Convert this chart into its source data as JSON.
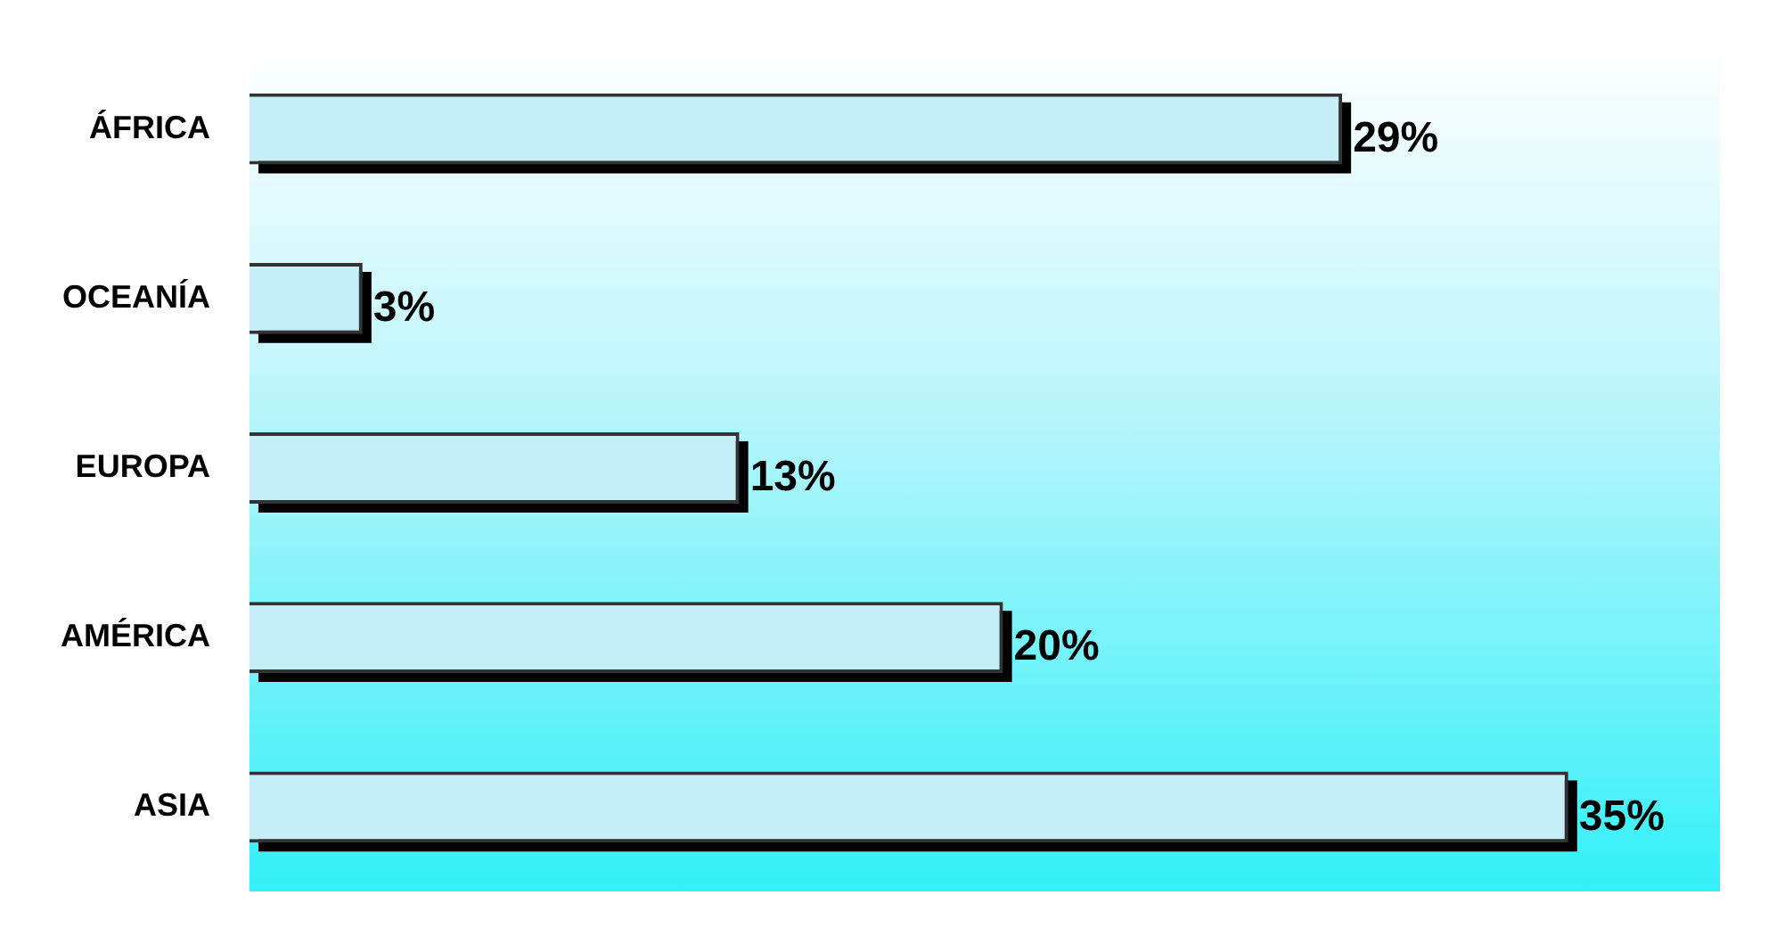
{
  "chart_data": {
    "type": "bar",
    "orientation": "horizontal",
    "categories": [
      "ÁFRICA",
      "OCEANÍA",
      "EUROPA",
      "AMÉRICA",
      "ASIA"
    ],
    "values": [
      29,
      3,
      13,
      20,
      35
    ],
    "color": "#c6eef6",
    "data_labels": true,
    "value_labels": [
      "29%",
      "3%",
      "13%",
      "20%",
      "35%"
    ]
  }
}
